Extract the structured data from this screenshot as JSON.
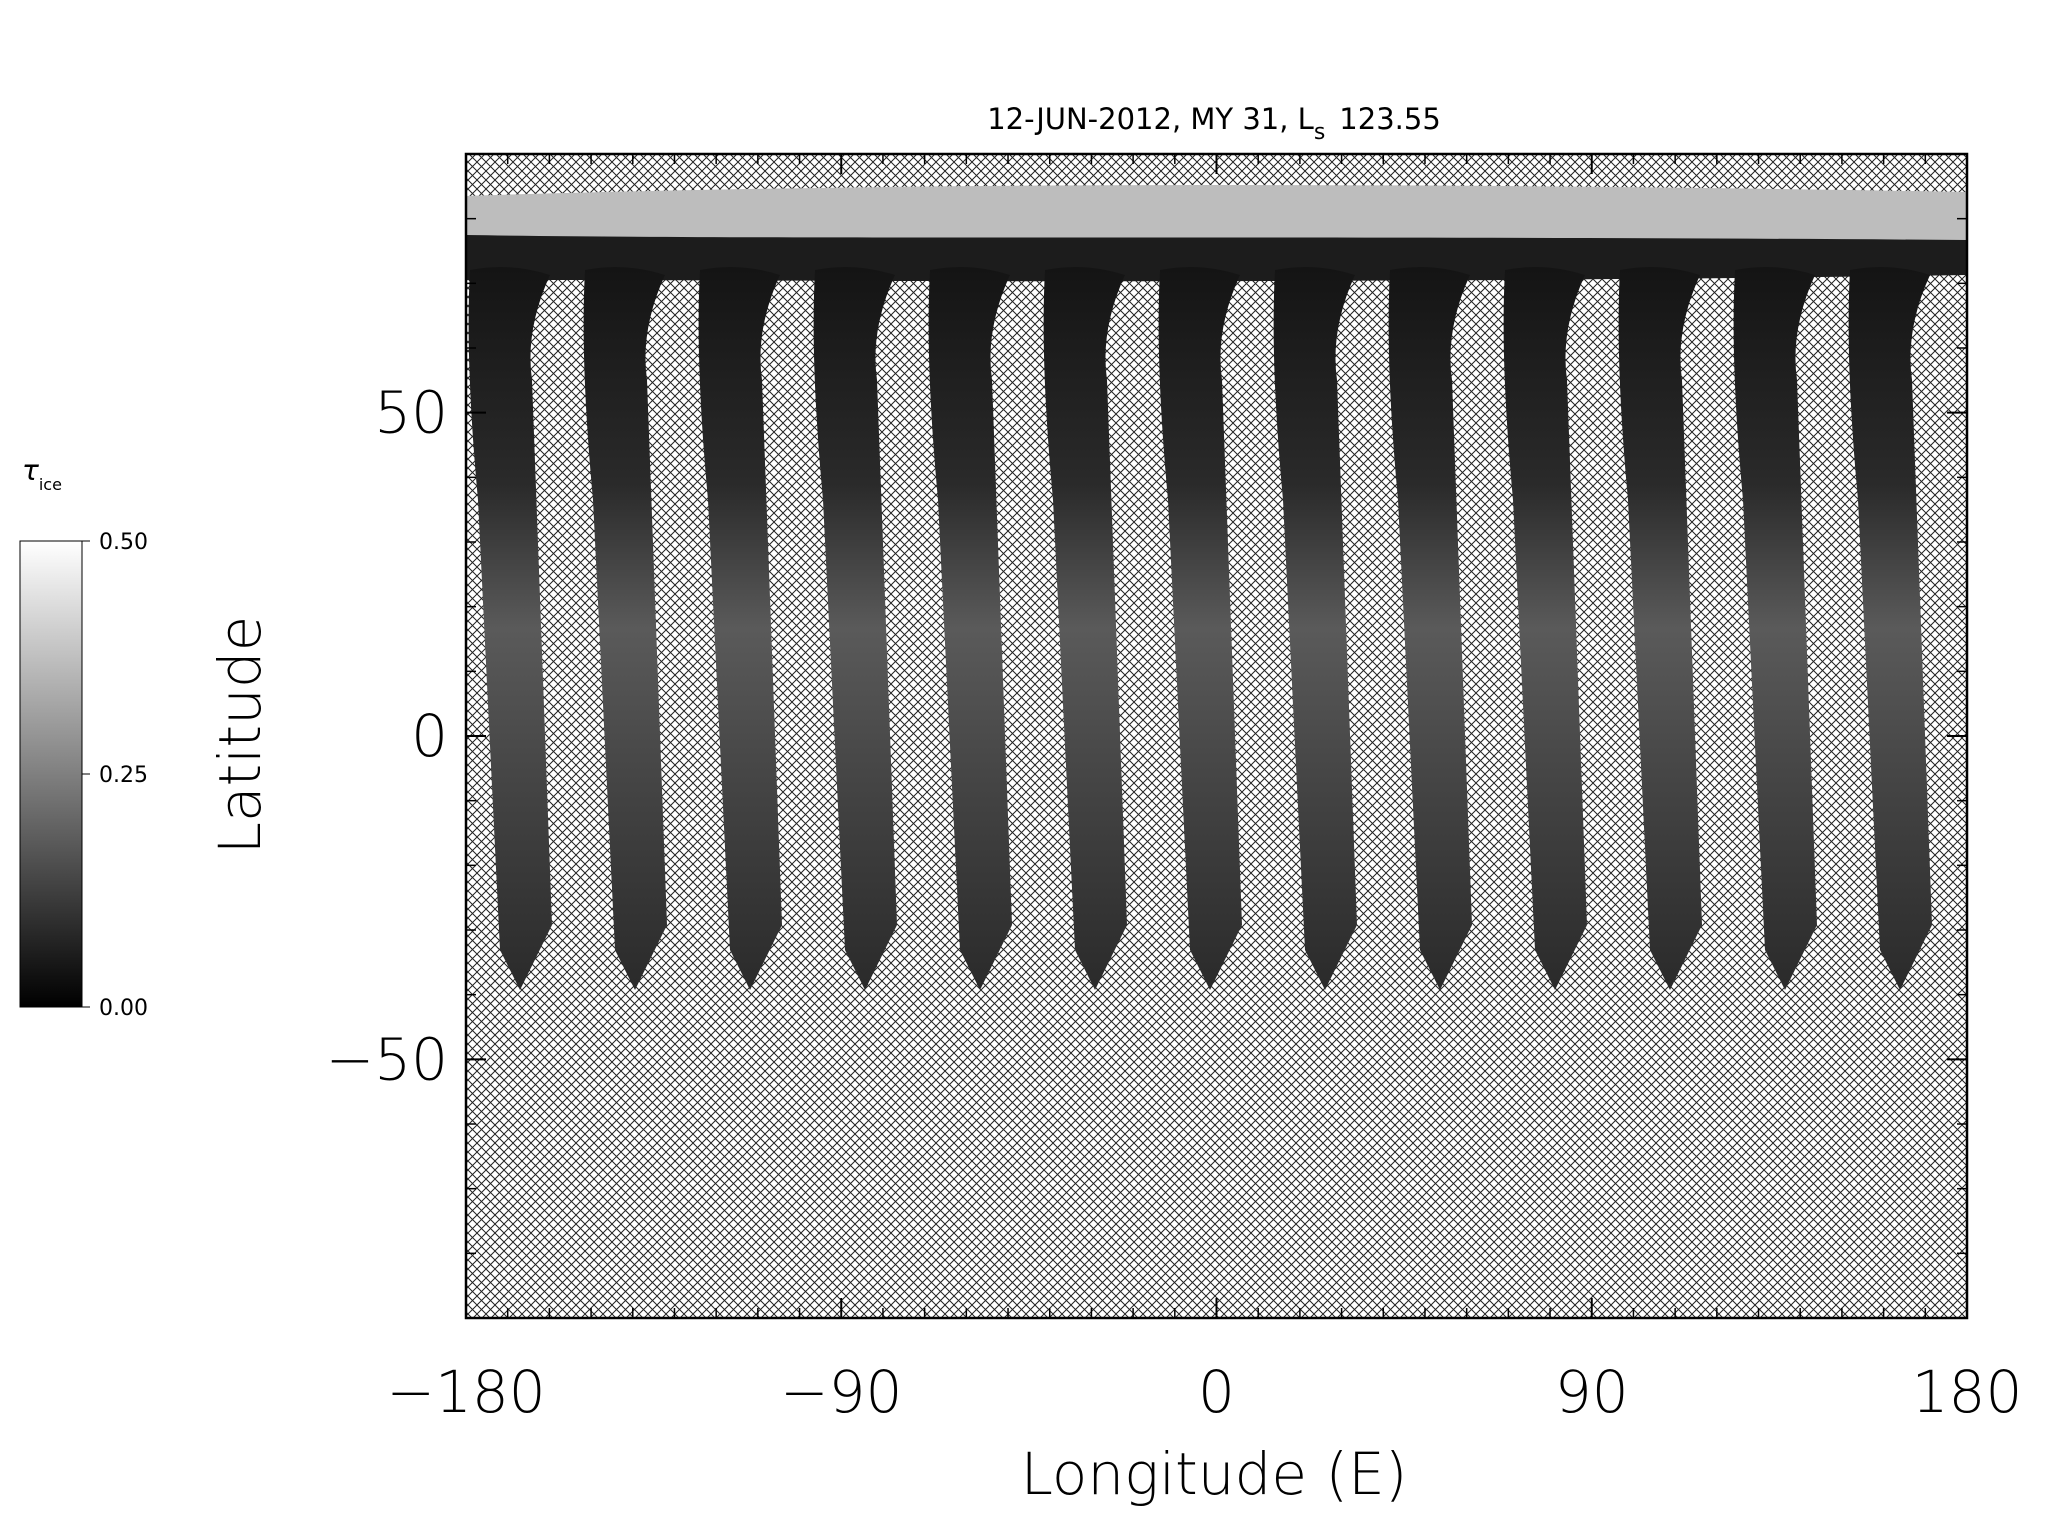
{
  "chart_data": {
    "type": "map",
    "title": "12-JUN-2012, MY 31,  L",
    "title_subscript": "s",
    "title_value": "123.55",
    "xlabel": "Longitude (E)",
    "ylabel": "Latitude",
    "xlim": [
      -180,
      180
    ],
    "ylim": [
      -90,
      90
    ],
    "xticks": [
      {
        "value": -180,
        "label": "−180"
      },
      {
        "value": -90,
        "label": "−90"
      },
      0,
      90,
      180
    ],
    "yticks": [
      {
        "value": -50,
        "label": "−50"
      },
      0,
      50
    ],
    "minor_tick_step": 10,
    "colorbar": {
      "label": "τ",
      "label_subscript": "ice",
      "lim": [
        0,
        0.5
      ],
      "ticks": [
        {
          "value": 0,
          "label": "0.00"
        },
        {
          "value": 0.25,
          "label": "0.25"
        },
        {
          "value": 0.5,
          "label": "0.50"
        }
      ]
    }
  }
}
